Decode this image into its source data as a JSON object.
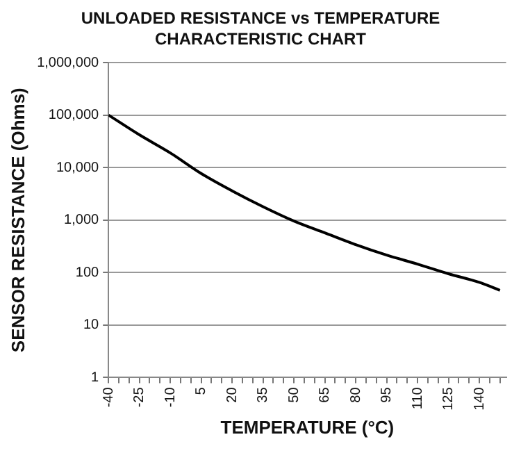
{
  "chart_data": {
    "type": "line",
    "title": "UNLOADED RESISTANCE vs TEMPERATURE CHARACTERISTIC CHART",
    "xlabel": "TEMPERATURE (°C)",
    "ylabel": "SENSOR RESISTANCE (Ohms)",
    "x": [
      -40,
      -25,
      -10,
      5,
      20,
      35,
      50,
      65,
      80,
      95,
      110,
      125,
      140,
      150
    ],
    "series": [
      {
        "color": "#000000",
        "values": [
          100000,
          42000,
          19000,
          7700,
          3600,
          1800,
          960,
          570,
          340,
          215,
          145,
          95,
          65,
          46
        ]
      }
    ],
    "xlim": [
      -40,
      153
    ],
    "xticks": [
      -40,
      {
        "value": -35,
        "label": null
      },
      {
        "value": -30,
        "label": null
      },
      -25,
      {
        "value": -20,
        "label": null
      },
      {
        "value": -15,
        "label": null
      },
      -10,
      {
        "value": -5,
        "label": null
      },
      {
        "value": 0,
        "label": null
      },
      5,
      {
        "value": 10,
        "label": null
      },
      {
        "value": 15,
        "label": null
      },
      20,
      {
        "value": 25,
        "label": null
      },
      {
        "value": 30,
        "label": null
      },
      35,
      {
        "value": 40,
        "label": null
      },
      {
        "value": 45,
        "label": null
      },
      50,
      {
        "value": 55,
        "label": null
      },
      {
        "value": 60,
        "label": null
      },
      65,
      {
        "value": 70,
        "label": null
      },
      {
        "value": 75,
        "label": null
      },
      80,
      {
        "value": 85,
        "label": null
      },
      {
        "value": 90,
        "label": null
      },
      95,
      {
        "value": 100,
        "label": null
      },
      {
        "value": 105,
        "label": null
      },
      110,
      {
        "value": 115,
        "label": null
      },
      {
        "value": 120,
        "label": null
      },
      125,
      {
        "value": 130,
        "label": null
      },
      {
        "value": 135,
        "label": null
      },
      140,
      {
        "value": 145,
        "label": null
      },
      {
        "value": 150,
        "label": null
      }
    ],
    "ylim": [
      1,
      1000000
    ],
    "log": "y",
    "yticks": [
      1,
      10,
      100,
      {
        "value": 1000,
        "label": "1,000"
      },
      {
        "value": 10000,
        "label": "10,000"
      },
      {
        "value": 100000,
        "label": "100,000"
      },
      {
        "value": 1000000,
        "label": "1,000,000"
      }
    ],
    "grid": "y",
    "marker": "none",
    "line_style": "solid"
  }
}
